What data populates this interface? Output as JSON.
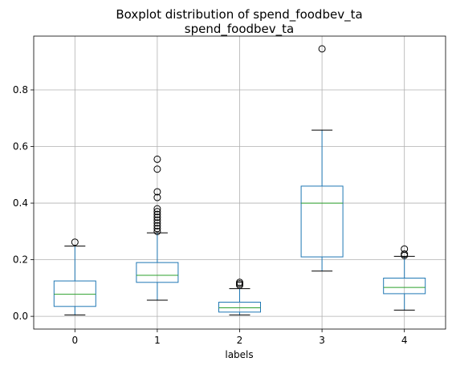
{
  "chart_data": {
    "type": "boxplot",
    "suptitle": "Boxplot distribution of spend_foodbev_ta",
    "title": "spend_foodbev_ta",
    "xlabel": "labels",
    "ylabel": "",
    "grid": true,
    "ylim": [
      -0.045,
      0.99
    ],
    "yticks": [
      0.0,
      0.2,
      0.4,
      0.6,
      0.8
    ],
    "ytick_labels": [
      "0.0",
      "0.2",
      "0.4",
      "0.6",
      "0.8"
    ],
    "categories": [
      "0",
      "1",
      "2",
      "3",
      "4"
    ],
    "boxes": [
      {
        "label": "0",
        "whisker_low": 0.005,
        "q1": 0.035,
        "median": 0.078,
        "q3": 0.125,
        "whisker_high": 0.248,
        "outliers": [
          0.262
        ]
      },
      {
        "label": "1",
        "whisker_low": 0.057,
        "q1": 0.12,
        "median": 0.145,
        "q3": 0.19,
        "whisker_high": 0.295,
        "outliers": [
          0.3,
          0.31,
          0.32,
          0.33,
          0.34,
          0.35,
          0.36,
          0.37,
          0.38,
          0.42,
          0.44,
          0.52,
          0.555
        ]
      },
      {
        "label": "2",
        "whisker_low": 0.005,
        "q1": 0.015,
        "median": 0.03,
        "q3": 0.05,
        "whisker_high": 0.098,
        "outliers": [
          0.11,
          0.115,
          0.12
        ]
      },
      {
        "label": "3",
        "whisker_low": 0.16,
        "q1": 0.21,
        "median": 0.4,
        "q3": 0.46,
        "whisker_high": 0.658,
        "outliers": [
          0.945
        ]
      },
      {
        "label": "4",
        "whisker_low": 0.022,
        "q1": 0.08,
        "median": 0.102,
        "q3": 0.135,
        "whisker_high": 0.212,
        "outliers": [
          0.215,
          0.22,
          0.238
        ]
      }
    ],
    "colors": {
      "box": "#1f77b4",
      "median": "#2ca02c",
      "whisker_cap": "#000000",
      "outlier": "#000000",
      "grid": "#b0b0b0"
    }
  }
}
